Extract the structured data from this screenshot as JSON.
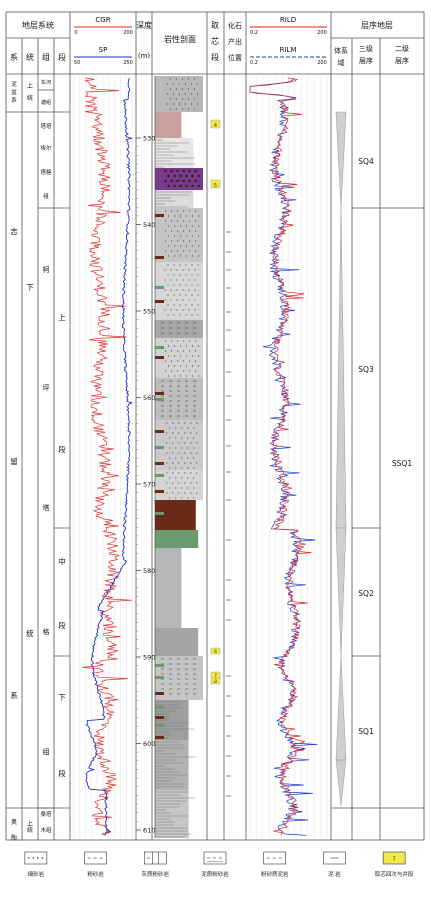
{
  "headers": {
    "stratigraphy": "地层系统",
    "system": "系",
    "series": "统",
    "group": "组",
    "member": "段",
    "cgr": "CGR",
    "cgr_min": "0",
    "cgr_max": "200",
    "sp": "SP",
    "sp_min": "50",
    "sp_max": "250",
    "depth": "深度",
    "depth_unit": "(m)",
    "lithology": "岩性剖面",
    "coring_1": "取",
    "coring_2": "芯",
    "coring_3": "段",
    "fossil_1": "化石",
    "fossil_2": "产出",
    "fossil_3": "位置",
    "rild": "RILD",
    "rild_min": "0.2",
    "rild_max": "200",
    "rilm": "RILM",
    "rilm_min": "0.2",
    "rilm_max": "200",
    "sequence": "层序地层",
    "tract_1": "体系",
    "tract_2": "域",
    "third_order_1": "三级",
    "third_order_2": "层序",
    "second_order_1": "二级",
    "second_order_2": "层序"
  },
  "system_labels": {
    "nipen_1": "泥",
    "nipen_2": "盆",
    "nipen_3": "系",
    "zhi_1": "志",
    "zhi_2": "留",
    "zhi_3": "系",
    "ao_1": "奥",
    "ao_2": "陶",
    "ao_3": "系"
  },
  "series_labels": {
    "shang": "上",
    "tong": "统",
    "xia": "下",
    "liu_tong": "统",
    "ao_shang": "上",
    "ao_tong": "统"
  },
  "group_labels": {
    "donghe_1": "东河",
    "donghe_2": "塘组",
    "tata_1": "塔塔",
    "tata_2": "埃尔",
    "tata_3": "塔格",
    "tata_4": "组",
    "kepingtage_1": "柯",
    "kepingtage_2": "坪",
    "kepingtage_3": "塔",
    "kepingtage_4": "格",
    "kepingtage_5": "组",
    "sangta_1": "桑塔",
    "sangta_2": "木组"
  },
  "member_labels": {
    "upper": "上",
    "upper_duan": "段",
    "middle": "中",
    "middle_duan": "段",
    "lower": "下",
    "lower_duan": "段"
  },
  "depth_ticks": [
    "5300",
    "5400",
    "5500",
    "5600",
    "5700",
    "5800",
    "5900",
    "6000",
    "6100"
  ],
  "core_labels": [
    "4",
    "5",
    "6",
    "7",
    "8"
  ],
  "sequences": {
    "sq4": "SQ4",
    "sq3": "SQ3",
    "sq2": "SQ2",
    "sq1": "SQ1",
    "ssq1": "SSQ1"
  },
  "legend": [
    {
      "label": "细砂岩",
      "pattern": "dots"
    },
    {
      "label": "粉砂岩",
      "pattern": "dashes"
    },
    {
      "label": "灰质粉砂岩",
      "pattern": "limy"
    },
    {
      "label": "泥质粉砂岩",
      "pattern": "muddy"
    },
    {
      "label": "粉砂质泥岩",
      "pattern": "silty-mud"
    },
    {
      "label": "泥 岩",
      "pattern": "mud"
    },
    {
      "label": "取芯回次与井段",
      "pattern": "core"
    }
  ],
  "colors": {
    "cgr": "#e03030",
    "sp": "#2030c0",
    "rild": "#e02020",
    "rilm": "#1a3ad0",
    "core": "#f2e84a",
    "green": "#6a9a70",
    "brown": "#6a2a18",
    "gray": "#a8a8a8",
    "light": "#d8d8d8",
    "purple": "#7a3a8a",
    "pink": "#c9a0a0"
  }
}
